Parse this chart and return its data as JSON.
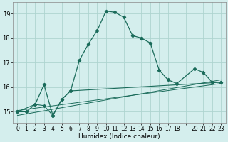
{
  "xlabel": "Humidex (Indice chaleur)",
  "bg_color": "#d4eeed",
  "grid_color": "#aed4d0",
  "line_color": "#1a6b5a",
  "xlim": [
    -0.5,
    23.5
  ],
  "ylim": [
    14.55,
    19.45
  ],
  "yticks": [
    15,
    16,
    17,
    18,
    19
  ],
  "xtick_labels": [
    "0",
    "1",
    "2",
    "3",
    "4",
    "5",
    "6",
    "7",
    "8",
    "9",
    "10",
    "11",
    "12",
    "13",
    "14",
    "15",
    "16",
    "17",
    "18",
    "",
    "20",
    "21",
    "22",
    "23"
  ],
  "xtick_positions": [
    0,
    1,
    2,
    3,
    4,
    5,
    6,
    7,
    8,
    9,
    10,
    11,
    12,
    13,
    14,
    15,
    16,
    17,
    18,
    19,
    20,
    21,
    22,
    23
  ],
  "series_main": {
    "x": [
      0,
      1,
      2,
      3,
      4,
      5,
      6,
      7,
      8,
      9,
      10,
      11,
      12,
      13,
      14,
      15,
      16,
      17,
      18,
      20,
      21,
      22,
      23
    ],
    "y": [
      15.0,
      15.0,
      15.3,
      16.1,
      14.85,
      15.5,
      15.85,
      17.1,
      17.75,
      18.3,
      19.1,
      19.05,
      18.85,
      18.1,
      18.0,
      17.8,
      16.7,
      16.3,
      16.15,
      16.75,
      16.6,
      16.2,
      16.2
    ]
  },
  "series_zigzag": {
    "x": [
      0,
      2,
      3,
      4,
      5,
      6,
      23
    ],
    "y": [
      15.0,
      15.3,
      15.25,
      14.85,
      15.5,
      15.85,
      16.2
    ]
  },
  "series_line1": {
    "x": [
      0,
      23
    ],
    "y": [
      15.05,
      16.15
    ]
  },
  "series_line2": {
    "x": [
      0,
      23
    ],
    "y": [
      14.85,
      16.3
    ]
  }
}
